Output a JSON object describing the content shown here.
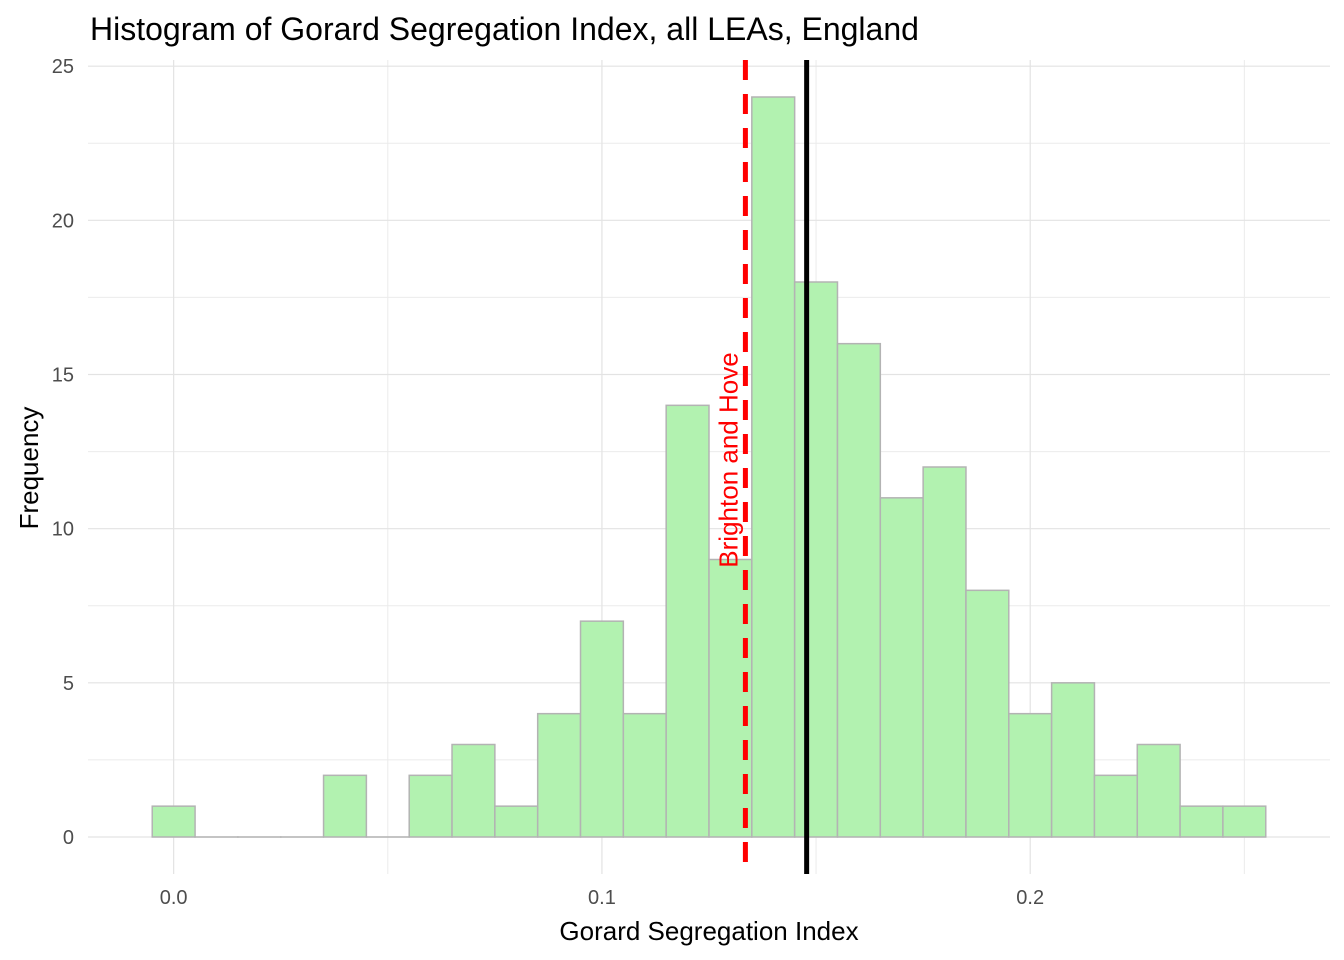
{
  "chart_data": {
    "type": "bar",
    "title": "Histogram of Gorard Segregation Index, all LEAs, England",
    "xlabel": "Gorard Segregation Index",
    "ylabel": "Frequency",
    "xlim": [
      -0.02,
      0.27
    ],
    "ylim": [
      -1.2,
      25.2
    ],
    "x_ticks": [
      "0.0",
      "0.1",
      "0.2"
    ],
    "x_tick_values": [
      0.0,
      0.1,
      0.2
    ],
    "y_ticks": [
      "0",
      "5",
      "10",
      "15",
      "20",
      "25"
    ],
    "y_tick_values": [
      0,
      5,
      10,
      15,
      20,
      25
    ],
    "grid": true,
    "bin_width": 0.01,
    "bars": [
      {
        "x": 0.0,
        "count": 1
      },
      {
        "x": 0.01,
        "count": 0
      },
      {
        "x": 0.02,
        "count": 0
      },
      {
        "x": 0.03,
        "count": 0
      },
      {
        "x": 0.04,
        "count": 2
      },
      {
        "x": 0.05,
        "count": 0
      },
      {
        "x": 0.06,
        "count": 2
      },
      {
        "x": 0.07,
        "count": 3
      },
      {
        "x": 0.08,
        "count": 1
      },
      {
        "x": 0.09,
        "count": 4
      },
      {
        "x": 0.1,
        "count": 7
      },
      {
        "x": 0.11,
        "count": 4
      },
      {
        "x": 0.12,
        "count": 14
      },
      {
        "x": 0.13,
        "count": 9
      },
      {
        "x": 0.14,
        "count": 24
      },
      {
        "x": 0.15,
        "count": 18
      },
      {
        "x": 0.16,
        "count": 16
      },
      {
        "x": 0.17,
        "count": 11
      },
      {
        "x": 0.18,
        "count": 12
      },
      {
        "x": 0.19,
        "count": 8
      },
      {
        "x": 0.2,
        "count": 4
      },
      {
        "x": 0.21,
        "count": 5
      },
      {
        "x": 0.22,
        "count": 2
      },
      {
        "x": 0.23,
        "count": 3
      },
      {
        "x": 0.24,
        "count": 1
      },
      {
        "x": 0.25,
        "count": 1
      }
    ],
    "bar_fill": "#b2f2b0",
    "bar_stroke": "#b3b3b3",
    "reference_lines": [
      {
        "x": 0.1335,
        "style": "dashed",
        "color": "#ff0000",
        "label": "Brighton and Hove"
      },
      {
        "x": 0.1478,
        "style": "solid",
        "color": "#000000",
        "label": ""
      }
    ]
  }
}
